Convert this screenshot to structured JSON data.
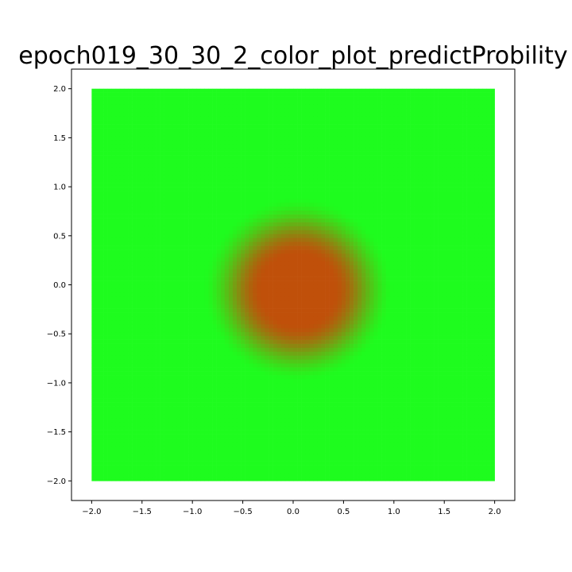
{
  "chart_data": {
    "type": "heatmap",
    "title": "epoch019_30_30_2_color_plot_predictProbility",
    "xlabel": "",
    "ylabel": "",
    "xlim": [
      -2.2,
      2.2
    ],
    "ylim": [
      -2.2,
      2.2
    ],
    "grid": false,
    "x_ticks": [
      -2.0,
      -1.5,
      -1.0,
      -0.5,
      0.0,
      0.5,
      1.0,
      1.5,
      2.0
    ],
    "y_ticks": [
      -2.0,
      -1.5,
      -1.0,
      -0.5,
      0.0,
      0.5,
      1.0,
      1.5,
      2.0
    ],
    "x_tick_labels": [
      "−2.0",
      "−1.5",
      "−1.0",
      "−0.5",
      "0.0",
      "0.5",
      "1.0",
      "1.5",
      "2.0"
    ],
    "y_tick_labels": [
      "−2.0",
      "−1.5",
      "−1.0",
      "−0.5",
      "0.0",
      "0.5",
      "1.0",
      "1.5",
      "2.0"
    ],
    "grid_range": {
      "x": [
        -2.0,
        2.0
      ],
      "y": [
        -2.0,
        2.0
      ],
      "points_per_axis": 100
    },
    "field": {
      "center": [
        0.05,
        -0.05
      ],
      "core_radius": 0.35,
      "fade_radius": 0.95,
      "low_color": "#1efc1e",
      "high_color": "#c0500a"
    },
    "colors": {
      "background": "#ffffff",
      "axes": "#000000"
    }
  }
}
